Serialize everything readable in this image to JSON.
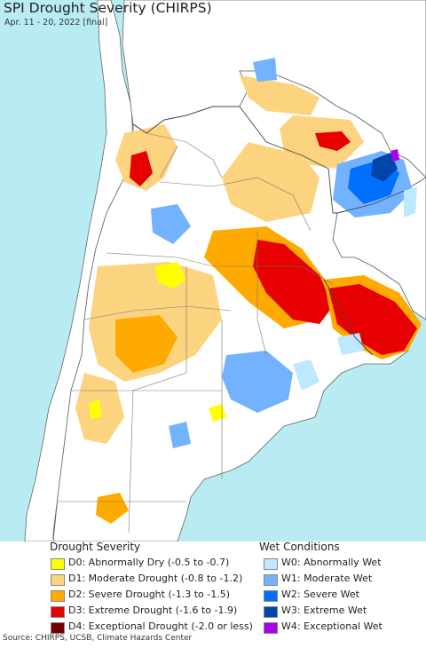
{
  "map": {
    "title": "SPI Drought Severity (CHIRPS)",
    "subtitle": "Apr. 11 - 20, 2022 [final]",
    "colors": {
      "ocean": "#b8ecf2",
      "land": "#ffffff",
      "outside_land": "#ffffff",
      "borders": "#666666"
    }
  },
  "legend": {
    "drought": {
      "title": "Drought Severity",
      "items": [
        {
          "label": "D0: Abnormally Dry (-0.5 to -0.7)",
          "color": "#ffff00"
        },
        {
          "label": "D1: Moderate Drought (-0.8 to -1.2)",
          "color": "#fcd37f"
        },
        {
          "label": "D2: Severe Drought (-1.3 to -1.5)",
          "color": "#ffaa00"
        },
        {
          "label": "D3: Extreme Drought (-1.6 to -1.9)",
          "color": "#e60000"
        },
        {
          "label": "D4: Exceptional Drought (-2.0 or less)",
          "color": "#730000"
        }
      ]
    },
    "wet": {
      "title": "Wet Conditions",
      "items": [
        {
          "label": "W0: Abnormally Wet",
          "color": "#bee8ff"
        },
        {
          "label": "W1: Moderate Wet",
          "color": "#73b2ff"
        },
        {
          "label": "W2: Severe Wet",
          "color": "#0070ff"
        },
        {
          "label": "W3: Extreme Wet",
          "color": "#0046a8"
        },
        {
          "label": "W4: Exceptional Wet",
          "color": "#a900e6"
        }
      ]
    }
  },
  "footer": {
    "source": "Source: CHIRPS, UCSB, Climate Hazards Center"
  }
}
